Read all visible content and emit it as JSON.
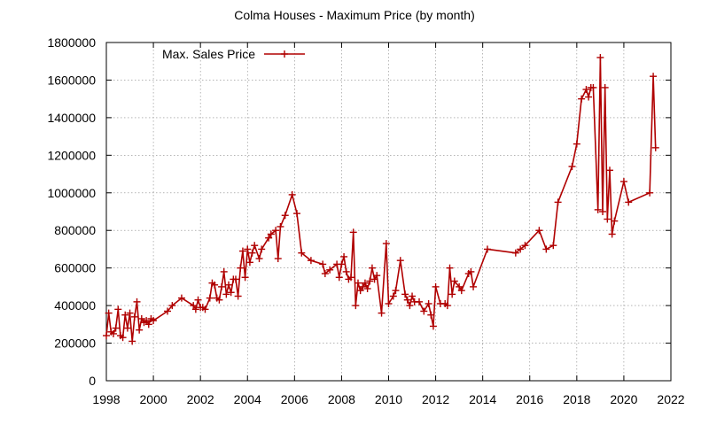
{
  "chart_data": {
    "type": "line",
    "title": "Colma Houses - Maximum Price (by month)",
    "xlabel": "",
    "ylabel": "",
    "xlim": [
      1998,
      2022
    ],
    "ylim": [
      0,
      1800000
    ],
    "x_ticks": [
      1998,
      2000,
      2002,
      2004,
      2006,
      2008,
      2010,
      2012,
      2014,
      2016,
      2018,
      2020,
      2022
    ],
    "y_ticks": [
      0,
      200000,
      400000,
      600000,
      800000,
      1000000,
      1200000,
      1400000,
      1600000,
      1800000
    ],
    "grid": true,
    "legend_position": "top-left",
    "series": [
      {
        "name": "Max. Sales Price",
        "color": "#b00000",
        "x": [
          1998.0,
          1998.1,
          1998.2,
          1998.3,
          1998.4,
          1998.5,
          1998.6,
          1998.7,
          1998.8,
          1998.9,
          1999.0,
          1999.1,
          1999.2,
          1999.3,
          1999.4,
          1999.5,
          1999.6,
          1999.7,
          1999.8,
          1999.9,
          2000.0,
          2000.6,
          2000.8,
          2001.2,
          2001.7,
          2001.8,
          2001.9,
          2002.0,
          2002.1,
          2002.2,
          2002.4,
          2002.5,
          2002.6,
          2002.7,
          2002.8,
          2002.9,
          2003.0,
          2003.1,
          2003.2,
          2003.3,
          2003.4,
          2003.5,
          2003.6,
          2003.7,
          2003.8,
          2003.9,
          2004.0,
          2004.1,
          2004.2,
          2004.3,
          2004.5,
          2004.6,
          2004.9,
          2005.0,
          2005.2,
          2005.3,
          2005.4,
          2005.6,
          2005.9,
          2006.1,
          2006.3,
          2006.7,
          2007.2,
          2007.3,
          2007.5,
          2007.8,
          2007.9,
          2008.0,
          2008.1,
          2008.2,
          2008.3,
          2008.4,
          2008.5,
          2008.6,
          2008.7,
          2008.8,
          2008.9,
          2009.0,
          2009.1,
          2009.2,
          2009.3,
          2009.4,
          2009.5,
          2009.7,
          2009.9,
          2010.0,
          2010.2,
          2010.3,
          2010.5,
          2010.7,
          2010.8,
          2010.9,
          2011.0,
          2011.1,
          2011.3,
          2011.5,
          2011.7,
          2011.8,
          2011.9,
          2012.0,
          2012.2,
          2012.4,
          2012.5,
          2012.6,
          2012.7,
          2012.8,
          2013.0,
          2013.1,
          2013.4,
          2013.5,
          2013.6,
          2014.2,
          2015.4,
          2015.6,
          2015.8,
          2016.4,
          2016.7,
          2017.0,
          2017.2,
          2017.8,
          2018.0,
          2018.2,
          2018.4,
          2018.5,
          2018.6,
          2018.7,
          2018.9,
          2019.0,
          2019.1,
          2019.2,
          2019.3,
          2019.4,
          2019.5,
          2019.6,
          2020.0,
          2020.2,
          2021.1,
          2021.25,
          2021.35
        ],
        "y": [
          240000,
          360000,
          260000,
          250000,
          280000,
          380000,
          240000,
          230000,
          350000,
          280000,
          360000,
          210000,
          340000,
          420000,
          270000,
          330000,
          310000,
          320000,
          300000,
          330000,
          320000,
          370000,
          400000,
          440000,
          400000,
          380000,
          430000,
          390000,
          390000,
          380000,
          440000,
          520000,
          510000,
          440000,
          430000,
          500000,
          580000,
          460000,
          510000,
          470000,
          540000,
          540000,
          450000,
          600000,
          690000,
          550000,
          700000,
          630000,
          680000,
          720000,
          650000,
          700000,
          760000,
          780000,
          800000,
          650000,
          820000,
          880000,
          990000,
          890000,
          680000,
          640000,
          620000,
          570000,
          590000,
          620000,
          550000,
          620000,
          660000,
          580000,
          540000,
          550000,
          790000,
          400000,
          520000,
          480000,
          500000,
          520000,
          490000,
          530000,
          600000,
          540000,
          560000,
          360000,
          730000,
          410000,
          450000,
          480000,
          640000,
          460000,
          430000,
          400000,
          450000,
          420000,
          420000,
          370000,
          410000,
          350000,
          290000,
          500000,
          410000,
          410000,
          400000,
          600000,
          460000,
          530000,
          500000,
          480000,
          570000,
          580000,
          500000,
          700000,
          680000,
          700000,
          720000,
          800000,
          700000,
          720000,
          950000,
          1140000,
          1260000,
          1500000,
          1550000,
          1510000,
          1560000,
          1560000,
          910000,
          1720000,
          900000,
          1560000,
          860000,
          1120000,
          780000,
          850000,
          1060000,
          950000,
          1000000,
          1620000,
          1240000
        ]
      }
    ]
  }
}
